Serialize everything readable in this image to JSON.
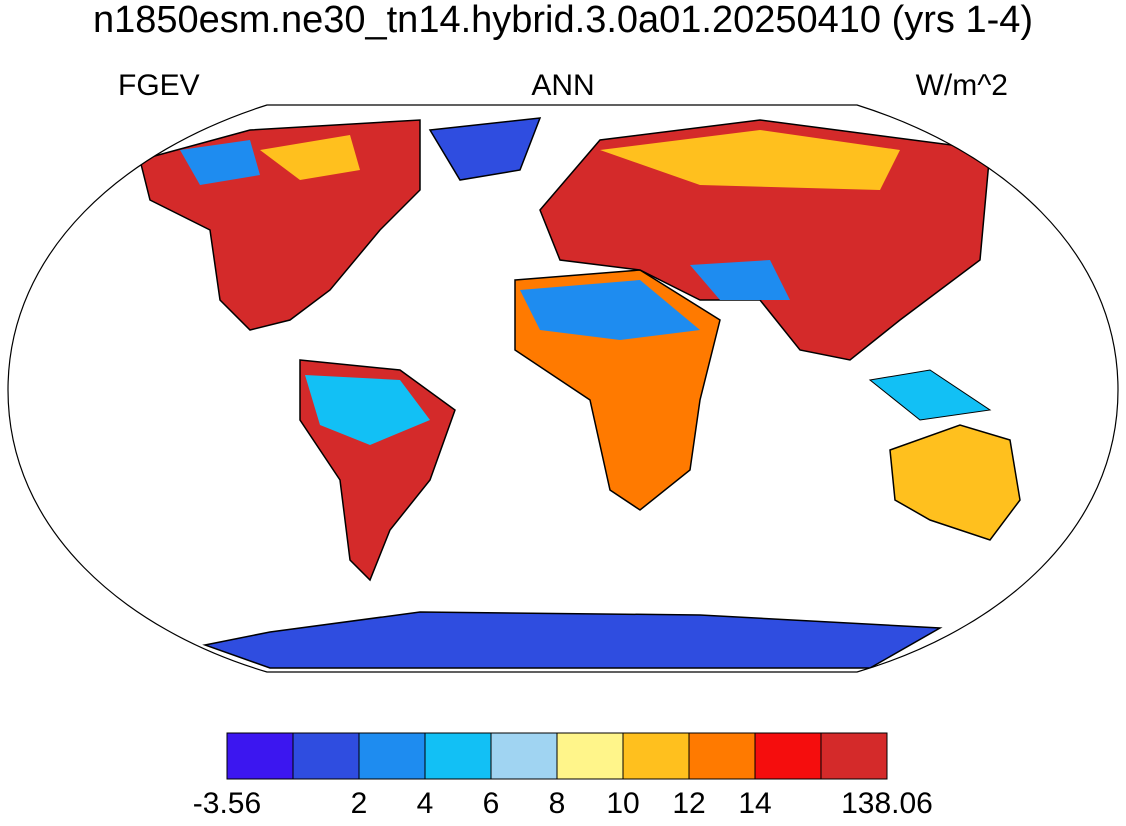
{
  "title": "n1850esm.ne30_tn14.hybrid.3.0a01.20250410 (yrs 1-4)",
  "left_label": "FGEV",
  "center_label": "ANN",
  "right_label": "W/m^2",
  "colorbar": {
    "boundaries": [
      -3.56,
      null,
      2,
      4,
      6,
      8,
      10,
      12,
      14,
      null,
      138.06
    ],
    "colors": [
      "#3c16f0",
      "#2f4de0",
      "#1e8cf0",
      "#12c0f5",
      "#a0d4f2",
      "#fff58a",
      "#ffc01e",
      "#ff7a00",
      "#f50d0d",
      "#d42a2a"
    ]
  }
}
